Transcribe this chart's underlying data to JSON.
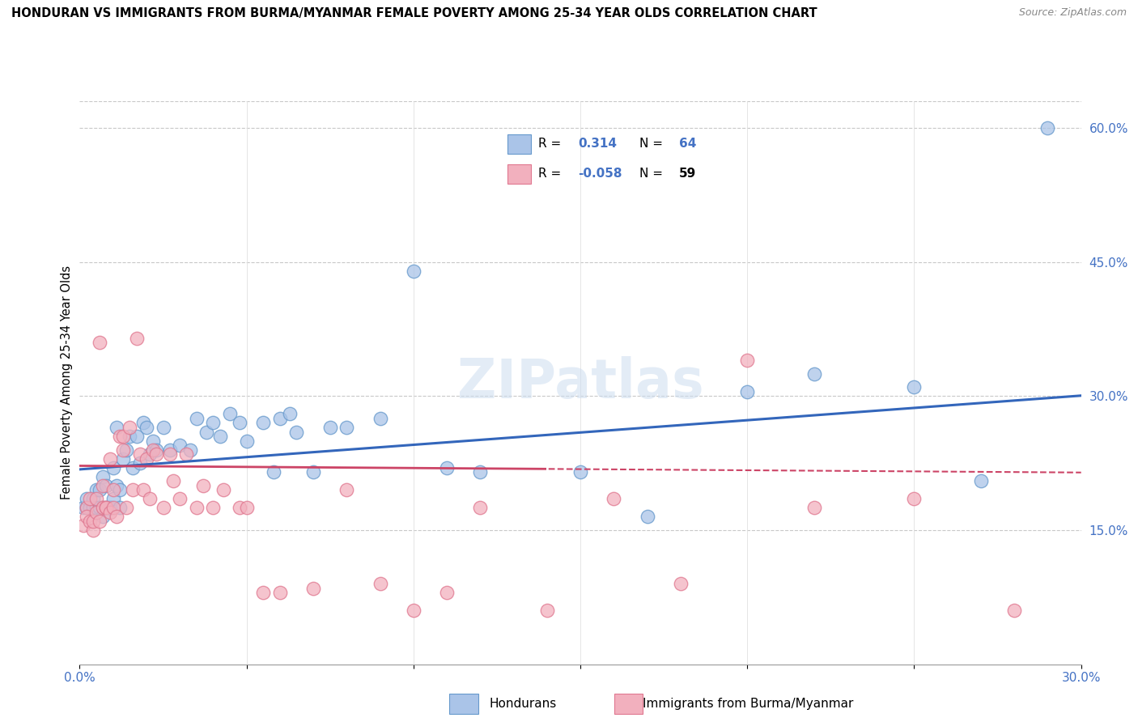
{
  "title": "HONDURAN VS IMMIGRANTS FROM BURMA/MYANMAR FEMALE POVERTY AMONG 25-34 YEAR OLDS CORRELATION CHART",
  "source": "Source: ZipAtlas.com",
  "ylabel": "Female Poverty Among 25-34 Year Olds",
  "xlim": [
    0.0,
    0.3
  ],
  "ylim": [
    0.0,
    0.63
  ],
  "blue_color": "#aac4e8",
  "pink_color": "#f2b0be",
  "blue_edge_color": "#6699cc",
  "pink_edge_color": "#e07890",
  "blue_line_color": "#3366bb",
  "pink_line_color": "#cc4466",
  "legend_R1": "0.314",
  "legend_N1": "64",
  "legend_R2": "-0.058",
  "legend_N2": "59",
  "legend_label1": "Hondurans",
  "legend_label2": "Immigrants from Burma/Myanmar",
  "watermark": "ZIPatlas",
  "blue_intercept": 0.218,
  "blue_slope": 0.275,
  "pink_intercept": 0.222,
  "pink_slope": -0.025,
  "blue_x": [
    0.001,
    0.002,
    0.002,
    0.003,
    0.004,
    0.004,
    0.005,
    0.005,
    0.006,
    0.006,
    0.007,
    0.007,
    0.007,
    0.008,
    0.008,
    0.009,
    0.009,
    0.01,
    0.01,
    0.011,
    0.011,
    0.012,
    0.012,
    0.013,
    0.014,
    0.015,
    0.016,
    0.017,
    0.018,
    0.019,
    0.02,
    0.021,
    0.022,
    0.023,
    0.025,
    0.027,
    0.03,
    0.033,
    0.035,
    0.038,
    0.04,
    0.042,
    0.045,
    0.048,
    0.05,
    0.055,
    0.058,
    0.06,
    0.063,
    0.065,
    0.07,
    0.075,
    0.08,
    0.09,
    0.1,
    0.11,
    0.12,
    0.15,
    0.17,
    0.2,
    0.22,
    0.25,
    0.27,
    0.29
  ],
  "blue_y": [
    0.175,
    0.175,
    0.185,
    0.175,
    0.175,
    0.185,
    0.175,
    0.195,
    0.175,
    0.195,
    0.165,
    0.175,
    0.21,
    0.175,
    0.2,
    0.175,
    0.175,
    0.185,
    0.22,
    0.2,
    0.265,
    0.175,
    0.195,
    0.23,
    0.24,
    0.255,
    0.22,
    0.255,
    0.225,
    0.27,
    0.265,
    0.235,
    0.25,
    0.24,
    0.265,
    0.24,
    0.245,
    0.24,
    0.275,
    0.26,
    0.27,
    0.255,
    0.28,
    0.27,
    0.25,
    0.27,
    0.215,
    0.275,
    0.28,
    0.26,
    0.215,
    0.265,
    0.265,
    0.275,
    0.44,
    0.22,
    0.215,
    0.215,
    0.165,
    0.305,
    0.325,
    0.31,
    0.205,
    0.6
  ],
  "pink_x": [
    0.001,
    0.002,
    0.002,
    0.003,
    0.003,
    0.004,
    0.004,
    0.005,
    0.005,
    0.006,
    0.006,
    0.007,
    0.007,
    0.008,
    0.008,
    0.009,
    0.009,
    0.01,
    0.01,
    0.011,
    0.012,
    0.013,
    0.013,
    0.014,
    0.015,
    0.016,
    0.017,
    0.018,
    0.019,
    0.02,
    0.021,
    0.022,
    0.023,
    0.025,
    0.027,
    0.028,
    0.03,
    0.032,
    0.035,
    0.037,
    0.04,
    0.043,
    0.048,
    0.05,
    0.055,
    0.06,
    0.07,
    0.08,
    0.09,
    0.1,
    0.11,
    0.12,
    0.14,
    0.16,
    0.18,
    0.2,
    0.22,
    0.25,
    0.28
  ],
  "pink_y": [
    0.155,
    0.175,
    0.165,
    0.185,
    0.16,
    0.15,
    0.16,
    0.185,
    0.17,
    0.16,
    0.36,
    0.175,
    0.2,
    0.175,
    0.175,
    0.17,
    0.23,
    0.195,
    0.175,
    0.165,
    0.255,
    0.24,
    0.255,
    0.175,
    0.265,
    0.195,
    0.365,
    0.235,
    0.195,
    0.23,
    0.185,
    0.24,
    0.235,
    0.175,
    0.235,
    0.205,
    0.185,
    0.235,
    0.175,
    0.2,
    0.175,
    0.195,
    0.175,
    0.175,
    0.08,
    0.08,
    0.085,
    0.195,
    0.09,
    0.06,
    0.08,
    0.175,
    0.06,
    0.185,
    0.09,
    0.34,
    0.175,
    0.185,
    0.06
  ]
}
